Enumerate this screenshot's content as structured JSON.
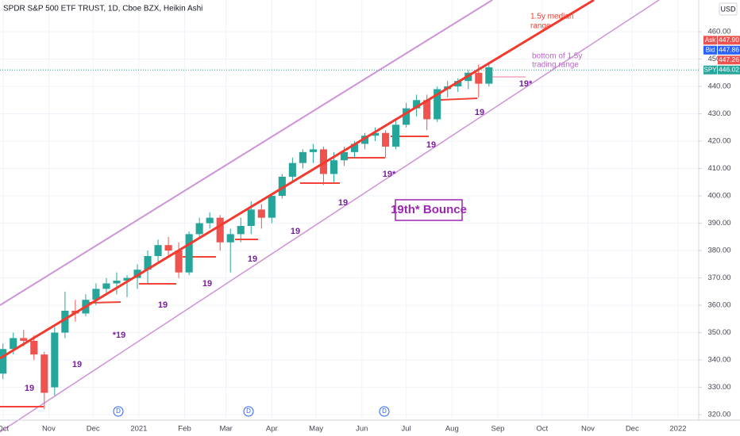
{
  "chart_data": {
    "type": "candlestick",
    "title": "SPDR S&P 500 ETF TRUST, 1D, Cboe BZX, Heikin Ashi",
    "currency": "USD",
    "xlim": [
      -2,
      471
    ],
    "ylim": [
      318,
      471.6
    ],
    "grid": true,
    "up_color": "#26a69a",
    "down_color": "#ef5350",
    "xticks": [
      {
        "value": 0,
        "label": "Oct"
      },
      {
        "value": 31,
        "label": "Nov"
      },
      {
        "value": 61,
        "label": "Dec"
      },
      {
        "value": 92,
        "label": "2021"
      },
      {
        "value": 123,
        "label": "Feb"
      },
      {
        "value": 151,
        "label": "Mar"
      },
      {
        "value": 182,
        "label": "Apr"
      },
      {
        "value": 212,
        "label": "May"
      },
      {
        "value": 243,
        "label": "Jun"
      },
      {
        "value": 273,
        "label": "Jul"
      },
      {
        "value": 304,
        "label": "Aug"
      },
      {
        "value": 335,
        "label": "Sep"
      },
      {
        "value": 365,
        "label": "Oct"
      },
      {
        "value": 396,
        "label": "Nov"
      },
      {
        "value": 426,
        "label": "Dec"
      },
      {
        "value": 457,
        "label": "2022"
      }
    ],
    "yticks": [
      {
        "value": 320,
        "label": "320.00"
      },
      {
        "value": 330,
        "label": "330.00"
      },
      {
        "value": 340,
        "label": "340.00"
      },
      {
        "value": 350,
        "label": "350.00"
      },
      {
        "value": 360,
        "label": "360.00"
      },
      {
        "value": 370,
        "label": "370.00"
      },
      {
        "value": 380,
        "label": "380.00"
      },
      {
        "value": 390,
        "label": "390.00"
      },
      {
        "value": 400,
        "label": "400.00"
      },
      {
        "value": 410,
        "label": "410.00"
      },
      {
        "value": 420,
        "label": "420.00"
      },
      {
        "value": 430,
        "label": "430.00"
      },
      {
        "value": 440,
        "label": "440.00"
      },
      {
        "value": 450,
        "label": "450.00"
      },
      {
        "value": 460,
        "label": "460.00"
      }
    ],
    "x": [
      0,
      7,
      14,
      21,
      28,
      35,
      42,
      49,
      56,
      63,
      70,
      77,
      84,
      91,
      98,
      105,
      112,
      119,
      126,
      133,
      140,
      147,
      154,
      161,
      168,
      175,
      182,
      189,
      196,
      203,
      210,
      217,
      224,
      231,
      238,
      245,
      252,
      259,
      266,
      273,
      280,
      287,
      294,
      301,
      308,
      315,
      322,
      329
    ],
    "open": [
      335,
      344,
      348,
      347,
      342,
      330,
      350,
      358,
      357,
      362,
      366,
      368,
      369,
      370,
      373,
      378,
      382,
      380,
      372,
      386,
      390,
      392,
      383,
      386,
      389,
      395,
      392,
      400,
      407,
      412,
      416,
      417,
      408,
      413,
      416,
      419,
      422,
      423,
      418,
      426,
      432,
      435,
      428,
      439,
      440,
      442,
      445,
      441
    ],
    "high": [
      346,
      350,
      351,
      349,
      343,
      352,
      365,
      362,
      364,
      368,
      370,
      372,
      371,
      375,
      380,
      384,
      385,
      383,
      387,
      392,
      394,
      393,
      388,
      392,
      398,
      397,
      401,
      408,
      414,
      417,
      419,
      418,
      416,
      418,
      420,
      423,
      425,
      424,
      428,
      434,
      437,
      437,
      440,
      442,
      443,
      446,
      448,
      449
    ],
    "low": [
      333,
      342,
      345,
      340,
      322,
      327,
      348,
      354,
      356,
      360,
      364,
      364,
      363,
      366,
      368,
      376,
      378,
      370,
      371,
      385,
      388,
      380,
      372,
      383,
      386,
      388,
      390,
      399,
      405,
      410,
      412,
      404,
      405,
      411,
      414,
      417,
      420,
      414,
      417,
      425,
      429,
      424,
      427,
      436,
      438,
      439,
      436,
      440
    ],
    "close": [
      344,
      348,
      347,
      342,
      328,
      350,
      358,
      357,
      362,
      366,
      368,
      369,
      370,
      373,
      378,
      382,
      380,
      372,
      386,
      390,
      392,
      383,
      386,
      389,
      395,
      392,
      400,
      407,
      412,
      416,
      417,
      408,
      413,
      416,
      419,
      422,
      423,
      418,
      426,
      432,
      435,
      428,
      439,
      440,
      442,
      445,
      441,
      447
    ],
    "price_labels": [
      {
        "name": "Ask",
        "value": 447.9,
        "label": "447.90",
        "color": "#ef5350"
      },
      {
        "name": "Bid",
        "value": 447.86,
        "label": "447.86",
        "color": "#2962ff"
      },
      {
        "value": 447.26,
        "label": "447.26",
        "color": "#ef5350"
      },
      {
        "name": "SPY",
        "value": 446.02,
        "label": "446.02",
        "color": "#26a69a"
      }
    ],
    "annotations": [
      "1.5y median",
      "range",
      "bottom of 1.5y",
      "trading range",
      "19th* Bounce",
      "19",
      "19",
      "*19",
      "19",
      "19",
      "19",
      "19",
      "19",
      "19*",
      "19",
      "19",
      "19*",
      "D",
      "D",
      "D"
    ]
  }
}
